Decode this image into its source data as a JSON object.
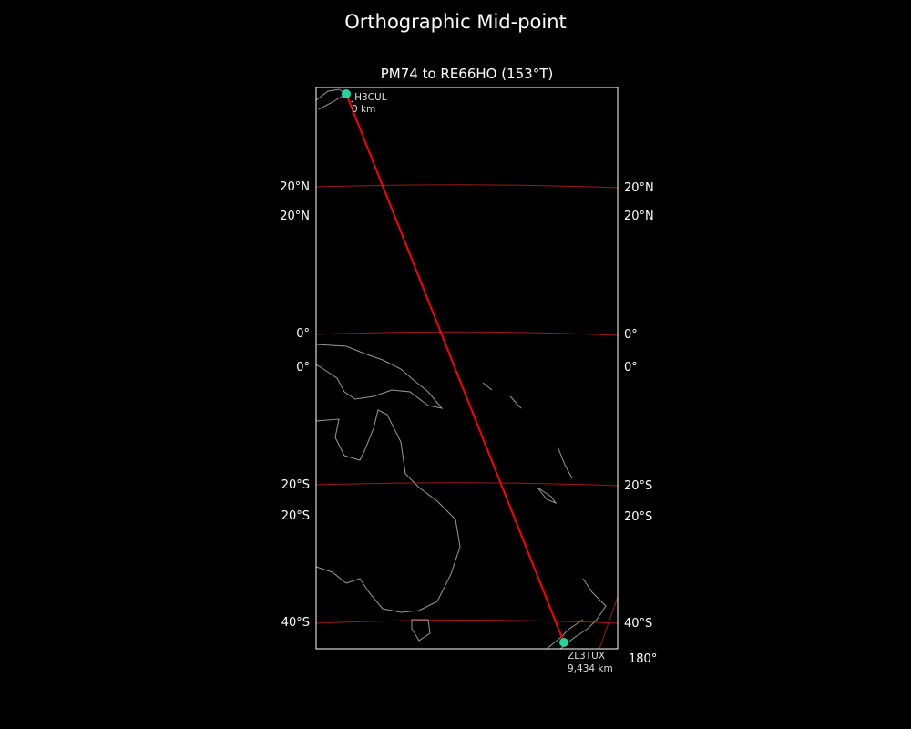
{
  "figure_title": "Orthographic Mid-point",
  "axes_title": "PM74 to RE66HO (153°T)",
  "colors": {
    "background": "#000000",
    "path": "#ff0000",
    "gridline": "#a01818",
    "coastline": "#999999",
    "endpoint_marker": "#1ed6a0"
  },
  "chart_data": {
    "type": "map",
    "projection": "orthographic",
    "left_lat_labels": [
      "20°N",
      "20°N",
      "0°",
      "0°",
      "20°S",
      "20°S",
      "40°S"
    ],
    "right_lat_labels": [
      "20°N",
      "20°N",
      "0°",
      "0°",
      "20°S",
      "20°S",
      "40°S"
    ],
    "lon_labels": [
      "180°"
    ],
    "endpoints": [
      {
        "callsign": "JH3CUL",
        "distance": "0 km"
      },
      {
        "callsign": "ZL3TUX",
        "distance": "9,434 km"
      }
    ]
  }
}
